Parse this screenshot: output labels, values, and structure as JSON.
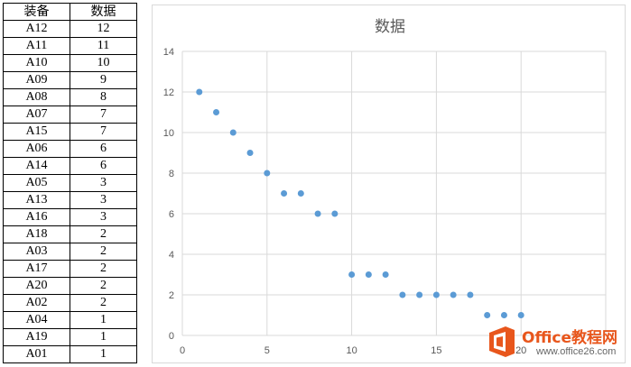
{
  "table": {
    "headers": [
      "装备",
      "数据"
    ],
    "rows": [
      [
        "A12",
        "12"
      ],
      [
        "A11",
        "11"
      ],
      [
        "A10",
        "10"
      ],
      [
        "A09",
        "9"
      ],
      [
        "A08",
        "8"
      ],
      [
        "A07",
        "7"
      ],
      [
        "A15",
        "7"
      ],
      [
        "A06",
        "6"
      ],
      [
        "A14",
        "6"
      ],
      [
        "A05",
        "3"
      ],
      [
        "A13",
        "3"
      ],
      [
        "A16",
        "3"
      ],
      [
        "A18",
        "2"
      ],
      [
        "A03",
        "2"
      ],
      [
        "A17",
        "2"
      ],
      [
        "A20",
        "2"
      ],
      [
        "A02",
        "2"
      ],
      [
        "A04",
        "1"
      ],
      [
        "A19",
        "1"
      ],
      [
        "A01",
        "1"
      ]
    ]
  },
  "chart_data": {
    "type": "scatter",
    "title": "数据",
    "x": [
      1,
      2,
      3,
      4,
      5,
      6,
      7,
      8,
      9,
      10,
      11,
      12,
      13,
      14,
      15,
      16,
      17,
      18,
      19,
      20
    ],
    "y": [
      12,
      11,
      10,
      9,
      8,
      7,
      7,
      6,
      6,
      3,
      3,
      3,
      2,
      2,
      2,
      2,
      2,
      1,
      1,
      1
    ],
    "xlim": [
      0,
      25
    ],
    "ylim": [
      0,
      14
    ],
    "xticks": [
      0,
      5,
      10,
      15,
      20
    ],
    "yticks": [
      0,
      2,
      4,
      6,
      8,
      10,
      12,
      14
    ],
    "grid": true,
    "legend": "none",
    "marker_color": "#5b9bd5"
  },
  "watermark": {
    "brand": "Office教程网",
    "url": "www.office26.com"
  },
  "colors": {
    "grid": "#d9d9d9",
    "axis_text": "#595959",
    "brand": "#e8561c"
  }
}
